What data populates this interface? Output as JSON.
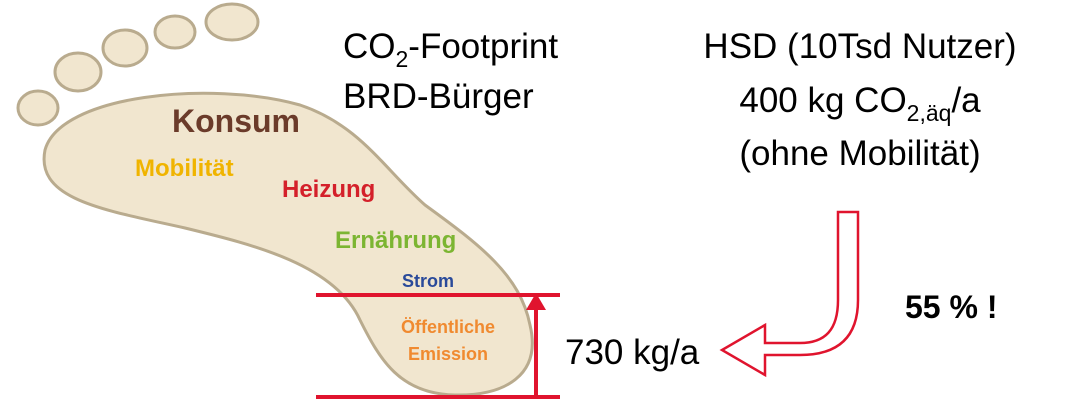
{
  "footprint": {
    "labels": [
      "Konsum",
      "Mobilität",
      "Heizung",
      "Ernährung",
      "Strom",
      "Öffentliche",
      "Emission"
    ]
  },
  "left_heading": {
    "line1": {
      "text": "CO",
      "subscript": "2",
      "suffix": "-Footprint"
    },
    "line2": "BRD-Bürger"
  },
  "right_heading": {
    "line1": "HSD (10Tsd Nutzer)",
    "line2": {
      "text": "400 kg CO",
      "subscript": "2,äq",
      "suffix": "/a"
    },
    "line3": "(ohne Mobilität)"
  },
  "measure": "730 kg/a",
  "share": "55 % !"
}
